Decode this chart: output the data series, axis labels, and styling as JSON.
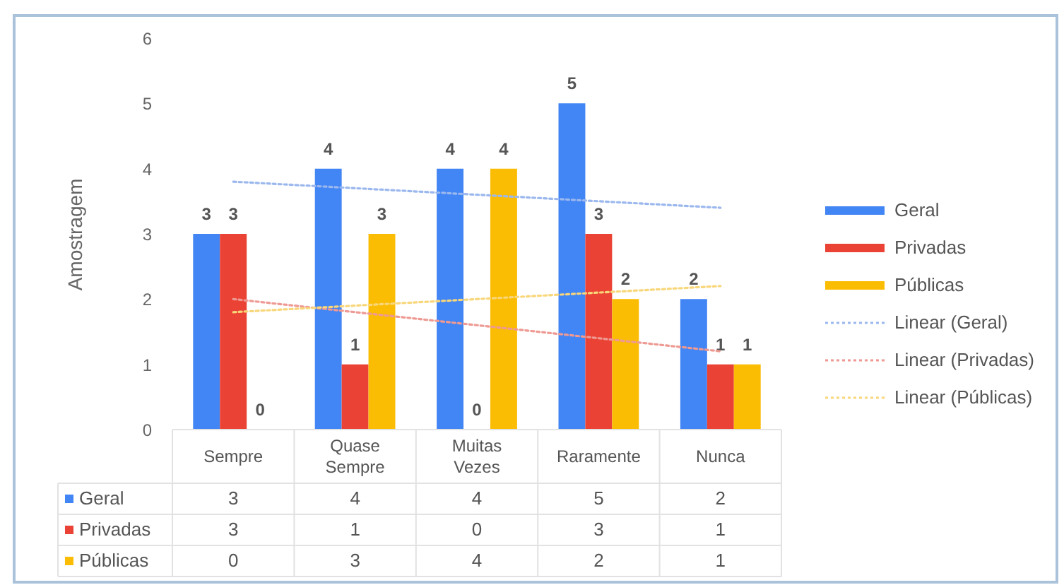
{
  "chart_data": {
    "type": "bar",
    "ylabel": "Amostragem",
    "categories": [
      "Sempre",
      "Quase Sempre",
      "Muitas Vezes",
      "Raramente",
      "Nunca"
    ],
    "series": [
      {
        "name": "Geral",
        "color": "#4285f4",
        "values": [
          3,
          4,
          4,
          5,
          2
        ],
        "value_labels": [
          "3",
          "4",
          "4",
          "5",
          "2"
        ]
      },
      {
        "name": "Privadas",
        "color": "#ea4335",
        "values": [
          3,
          1,
          0,
          3,
          1
        ],
        "value_labels": [
          "3",
          "1",
          "0",
          "3",
          "1"
        ]
      },
      {
        "name": "Públicas",
        "color": "#fbbc04",
        "values": [
          0,
          3,
          4,
          2,
          1
        ],
        "value_labels": [
          "0",
          "3",
          "4",
          "2",
          "1"
        ]
      },
      {
        "name": "Linear (Geral)",
        "type": "line",
        "color": "#9bb8ee",
        "line_style": "dotted",
        "values": [
          3.8,
          3.7,
          3.6,
          3.5,
          3.4
        ]
      },
      {
        "name": "Linear (Privadas)",
        "type": "line",
        "color": "#ee9a93",
        "line_style": "dotted",
        "values": [
          2.0,
          1.8,
          1.6,
          1.4,
          1.2
        ]
      },
      {
        "name": "Linear (Públicas)",
        "type": "line",
        "color": "#f8d67a",
        "line_style": "dotted",
        "values": [
          1.8,
          1.9,
          2.0,
          2.1,
          2.2
        ]
      }
    ],
    "ylim": [
      0,
      6
    ],
    "yticks": [
      0,
      1,
      2,
      3,
      4,
      5,
      6
    ],
    "legend": "right"
  }
}
